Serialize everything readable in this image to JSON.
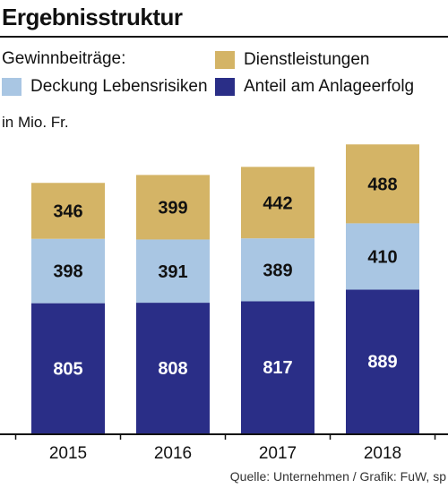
{
  "title": "Ergebnisstruktur",
  "legend_intro": "Gewinnbeiträge:",
  "unit": "in Mio. Fr.",
  "source": "Quelle: Unternehmen / Grafik: FuW, sp",
  "chart_data": {
    "type": "bar",
    "stacked": true,
    "categories": [
      "2015",
      "2016",
      "2017",
      "2018"
    ],
    "series": [
      {
        "name": "Anteil am Anlageerfolg",
        "color": "#2a2e87",
        "label_color": "#ffffff",
        "values": [
          805,
          808,
          817,
          889
        ]
      },
      {
        "name": "Deckung Lebensrisiken",
        "color": "#a9c6e3",
        "label_color": "#111111",
        "values": [
          398,
          391,
          389,
          410
        ]
      },
      {
        "name": "Dienstleistungen",
        "color": "#d4b466",
        "label_color": "#111111",
        "values": [
          346,
          399,
          442,
          488
        ]
      }
    ],
    "ylim": [
      0,
      1800
    ],
    "ylabel": "in Mio. Fr.",
    "legend_position": "top",
    "grid": false
  }
}
